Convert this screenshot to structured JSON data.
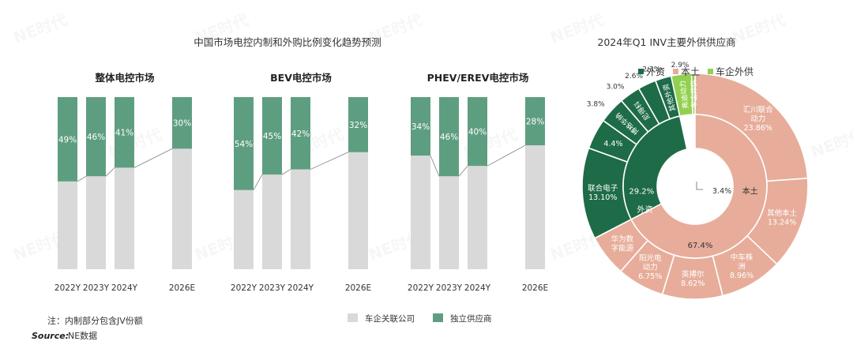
{
  "left_title": "中国市场电控内制和外购比例变化趋势预测",
  "right_title": "2024年Q1 INV主要外供供应商",
  "note": "注：内制部分包含JV份额",
  "source_label": "Source:",
  "source_text": "NE数据",
  "watermark": "NE时代",
  "colors": {
    "internal": "#d9d9d9",
    "independent": "#5e9e80",
    "foreign": "#1e6b48",
    "local": "#e7ad9a",
    "oem": "#92d050",
    "connector": "#7f7f7f"
  },
  "legend_bottom": [
    {
      "label": "车企关联公司",
      "color": "#d9d9d9"
    },
    {
      "label": "独立供应商",
      "color": "#5e9e80"
    }
  ],
  "chart_data": [
    {
      "type": "bar",
      "stacked": true,
      "title": "整体电控市场",
      "categories": [
        "2022Y",
        "2023Y",
        "2024Y",
        "2026E"
      ],
      "series": [
        {
          "name": "车企关联公司",
          "values": [
            51,
            54,
            59,
            70
          ]
        },
        {
          "name": "独立供应商",
          "values": [
            49,
            46,
            41,
            30
          ]
        }
      ],
      "data_labels": [
        "49%",
        "46%",
        "41%",
        "30%"
      ],
      "ylim": [
        0,
        100
      ]
    },
    {
      "type": "bar",
      "stacked": true,
      "title": "BEV电控市场",
      "categories": [
        "2022Y",
        "2023Y",
        "2024Y",
        "2026E"
      ],
      "series": [
        {
          "name": "车企关联公司",
          "values": [
            46,
            55,
            58,
            68
          ]
        },
        {
          "name": "独立供应商",
          "values": [
            54,
            45,
            42,
            32
          ]
        }
      ],
      "data_labels": [
        "54%",
        "45%",
        "42%",
        "32%"
      ],
      "ylim": [
        0,
        100
      ]
    },
    {
      "type": "bar",
      "stacked": true,
      "title": "PHEV/EREV电控市场",
      "categories": [
        "2022Y",
        "2023Y",
        "2024Y",
        "2026E"
      ],
      "series": [
        {
          "name": "车企关联公司",
          "values": [
            66,
            54,
            60,
            72
          ]
        },
        {
          "name": "独立供应商",
          "values": [
            34,
            46,
            40,
            28
          ]
        }
      ],
      "data_labels": [
        "34%",
        "46%",
        "40%",
        "28%"
      ],
      "ylim": [
        0,
        100
      ]
    },
    {
      "type": "pie",
      "subtype": "sunburst",
      "legend": [
        {
          "label": "外资",
          "color": "#1e6b48"
        },
        {
          "label": "本土",
          "color": "#e7ad9a"
        },
        {
          "label": "车企外供",
          "color": "#92d050"
        }
      ],
      "inner": [
        {
          "label": "外资",
          "value": 29.2,
          "value_label": "29.2%",
          "color": "#1e6b48"
        },
        {
          "label": "本土",
          "value": 67.4,
          "value_label": "67.4%",
          "color": "#e7ad9a"
        },
        {
          "label": "",
          "value": 3.4,
          "value_label": "3.4%",
          "color": "#ffffff"
        }
      ],
      "outer": [
        {
          "label": "汇川联合动力",
          "value": 23.86,
          "value_label": "23.86%",
          "group": "本土"
        },
        {
          "label": "其他本土",
          "value": 13.24,
          "value_label": "13.24%",
          "group": "本土"
        },
        {
          "label": "中车株洲",
          "value": 8.96,
          "value_label": "8.96%",
          "group": "本土"
        },
        {
          "label": "英搏尔",
          "value": 8.62,
          "value_label": "8.62%",
          "group": "本土"
        },
        {
          "label": "阳光电动力",
          "value": 6.75,
          "value_label": "6.75%",
          "group": "本土"
        },
        {
          "label": "华为数字能源",
          "value": 5.97,
          "value_label": "",
          "group": "本土"
        },
        {
          "label": "联合电子",
          "value": 13.1,
          "value_label": "13.10%",
          "group": "外资"
        },
        {
          "label": "",
          "value": 4.4,
          "value_label": "4.4%",
          "group": "外资"
        },
        {
          "label": "博格华纳",
          "value": 3.8,
          "value_label": "3.8%",
          "group": "外资"
        },
        {
          "label": "尼得科",
          "value": 3.0,
          "value_label": "3.0%",
          "group": "外资"
        },
        {
          "label": "",
          "value": 2.6,
          "value_label": "2.6%",
          "group": "外资"
        },
        {
          "label": "其他外资",
          "value": 2.3,
          "value_label": "2.3%",
          "group": "外资"
        },
        {
          "label": "弗迪动力",
          "value": 2.9,
          "value_label": "2.9%",
          "group": "车企外供"
        },
        {
          "label": "车企外供",
          "value": 0.5,
          "value_label": "",
          "group": "车企外供"
        }
      ]
    }
  ]
}
